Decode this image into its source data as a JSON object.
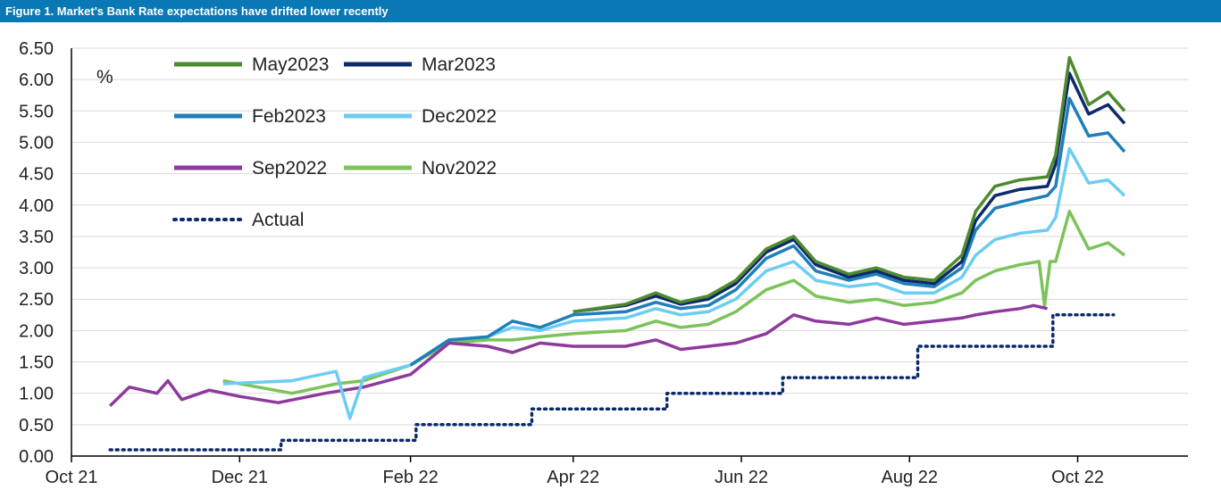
{
  "title": "Figure 1. Market's Bank Rate expectations have drifted lower recently",
  "chart_data": {
    "type": "line",
    "unit_label": "%",
    "ylim": [
      0,
      6.5
    ],
    "y_ticks": [
      "0.00",
      "0.50",
      "1.00",
      "1.50",
      "2.00",
      "2.50",
      "3.00",
      "3.50",
      "4.00",
      "4.50",
      "5.00",
      "5.50",
      "6.00",
      "6.50"
    ],
    "x_range": [
      "2021-10-01",
      "2022-11-10"
    ],
    "x_ticks": [
      {
        "date": "2021-10-01",
        "label": "Oct 21"
      },
      {
        "date": "2021-12-01",
        "label": "Dec 21"
      },
      {
        "date": "2022-02-01",
        "label": "Feb 22"
      },
      {
        "date": "2022-04-01",
        "label": "Apr 22"
      },
      {
        "date": "2022-06-01",
        "label": "Jun 22"
      },
      {
        "date": "2022-08-01",
        "label": "Aug 22"
      },
      {
        "date": "2022-10-01",
        "label": "Oct 22"
      }
    ],
    "grid": "horizontal",
    "legend_placement": "top-left",
    "series": [
      {
        "name": "May2023",
        "color": "#4e8a2e",
        "style": "solid",
        "points": [
          [
            "2022-04-01",
            2.3
          ],
          [
            "2022-04-20",
            2.42
          ],
          [
            "2022-05-01",
            2.6
          ],
          [
            "2022-05-10",
            2.45
          ],
          [
            "2022-05-20",
            2.55
          ],
          [
            "2022-05-30",
            2.8
          ],
          [
            "2022-06-10",
            3.3
          ],
          [
            "2022-06-20",
            3.5
          ],
          [
            "2022-06-28",
            3.1
          ],
          [
            "2022-07-10",
            2.9
          ],
          [
            "2022-07-20",
            3.0
          ],
          [
            "2022-07-30",
            2.85
          ],
          [
            "2022-08-10",
            2.8
          ],
          [
            "2022-08-20",
            3.2
          ],
          [
            "2022-08-25",
            3.9
          ],
          [
            "2022-09-01",
            4.3
          ],
          [
            "2022-09-10",
            4.4
          ],
          [
            "2022-09-20",
            4.45
          ],
          [
            "2022-09-23",
            4.8
          ],
          [
            "2022-09-28",
            6.35
          ],
          [
            "2022-10-05",
            5.6
          ],
          [
            "2022-10-12",
            5.8
          ],
          [
            "2022-10-18",
            5.5
          ]
        ]
      },
      {
        "name": "Mar2023",
        "color": "#0c2a6a",
        "style": "solid",
        "points": [
          [
            "2022-04-01",
            2.3
          ],
          [
            "2022-04-20",
            2.4
          ],
          [
            "2022-05-01",
            2.55
          ],
          [
            "2022-05-10",
            2.42
          ],
          [
            "2022-05-20",
            2.5
          ],
          [
            "2022-05-30",
            2.75
          ],
          [
            "2022-06-10",
            3.25
          ],
          [
            "2022-06-20",
            3.45
          ],
          [
            "2022-06-28",
            3.05
          ],
          [
            "2022-07-10",
            2.85
          ],
          [
            "2022-07-20",
            2.95
          ],
          [
            "2022-07-30",
            2.8
          ],
          [
            "2022-08-10",
            2.75
          ],
          [
            "2022-08-20",
            3.1
          ],
          [
            "2022-08-25",
            3.75
          ],
          [
            "2022-09-01",
            4.15
          ],
          [
            "2022-09-10",
            4.25
          ],
          [
            "2022-09-20",
            4.3
          ],
          [
            "2022-09-23",
            4.65
          ],
          [
            "2022-09-28",
            6.1
          ],
          [
            "2022-10-05",
            5.45
          ],
          [
            "2022-10-12",
            5.6
          ],
          [
            "2022-10-18",
            5.3
          ]
        ]
      },
      {
        "name": "Feb2023",
        "color": "#1f7fb8",
        "style": "solid",
        "points": [
          [
            "2022-02-01",
            1.45
          ],
          [
            "2022-02-15",
            1.85
          ],
          [
            "2022-03-01",
            1.9
          ],
          [
            "2022-03-10",
            2.15
          ],
          [
            "2022-03-20",
            2.05
          ],
          [
            "2022-04-01",
            2.25
          ],
          [
            "2022-04-20",
            2.3
          ],
          [
            "2022-05-01",
            2.45
          ],
          [
            "2022-05-10",
            2.35
          ],
          [
            "2022-05-20",
            2.4
          ],
          [
            "2022-05-30",
            2.65
          ],
          [
            "2022-06-10",
            3.15
          ],
          [
            "2022-06-20",
            3.35
          ],
          [
            "2022-06-28",
            2.95
          ],
          [
            "2022-07-10",
            2.8
          ],
          [
            "2022-07-20",
            2.9
          ],
          [
            "2022-07-30",
            2.75
          ],
          [
            "2022-08-10",
            2.7
          ],
          [
            "2022-08-20",
            3.0
          ],
          [
            "2022-08-25",
            3.6
          ],
          [
            "2022-09-01",
            3.95
          ],
          [
            "2022-09-10",
            4.05
          ],
          [
            "2022-09-20",
            4.15
          ],
          [
            "2022-09-23",
            4.3
          ],
          [
            "2022-09-28",
            5.7
          ],
          [
            "2022-10-05",
            5.1
          ],
          [
            "2022-10-12",
            5.15
          ],
          [
            "2022-10-18",
            4.85
          ]
        ]
      },
      {
        "name": "Dec2022",
        "color": "#6ccdf2",
        "style": "solid",
        "points": [
          [
            "2021-11-25",
            1.15
          ],
          [
            "2021-12-20",
            1.2
          ],
          [
            "2022-01-05",
            1.35
          ],
          [
            "2022-01-10",
            0.6
          ],
          [
            "2022-01-15",
            1.25
          ],
          [
            "2022-02-01",
            1.45
          ],
          [
            "2022-02-15",
            1.85
          ],
          [
            "2022-03-01",
            1.9
          ],
          [
            "2022-03-10",
            2.05
          ],
          [
            "2022-03-20",
            2.0
          ],
          [
            "2022-04-01",
            2.15
          ],
          [
            "2022-04-20",
            2.2
          ],
          [
            "2022-05-01",
            2.35
          ],
          [
            "2022-05-10",
            2.25
          ],
          [
            "2022-05-20",
            2.3
          ],
          [
            "2022-05-30",
            2.5
          ],
          [
            "2022-06-10",
            2.95
          ],
          [
            "2022-06-20",
            3.1
          ],
          [
            "2022-06-28",
            2.8
          ],
          [
            "2022-07-10",
            2.7
          ],
          [
            "2022-07-20",
            2.75
          ],
          [
            "2022-07-30",
            2.6
          ],
          [
            "2022-08-10",
            2.6
          ],
          [
            "2022-08-20",
            2.85
          ],
          [
            "2022-08-25",
            3.2
          ],
          [
            "2022-09-01",
            3.45
          ],
          [
            "2022-09-10",
            3.55
          ],
          [
            "2022-09-20",
            3.6
          ],
          [
            "2022-09-23",
            3.8
          ],
          [
            "2022-09-28",
            4.9
          ],
          [
            "2022-10-05",
            4.35
          ],
          [
            "2022-10-12",
            4.4
          ],
          [
            "2022-10-18",
            4.15
          ]
        ]
      },
      {
        "name": "Sep2022",
        "color": "#8e3a9c",
        "style": "solid",
        "points": [
          [
            "2021-10-15",
            0.8
          ],
          [
            "2021-10-22",
            1.1
          ],
          [
            "2021-11-01",
            1.0
          ],
          [
            "2021-11-05",
            1.2
          ],
          [
            "2021-11-10",
            0.9
          ],
          [
            "2021-11-20",
            1.05
          ],
          [
            "2021-12-01",
            0.95
          ],
          [
            "2021-12-15",
            0.85
          ],
          [
            "2022-01-01",
            1.0
          ],
          [
            "2022-01-15",
            1.1
          ],
          [
            "2022-02-01",
            1.3
          ],
          [
            "2022-02-15",
            1.8
          ],
          [
            "2022-03-01",
            1.75
          ],
          [
            "2022-03-10",
            1.65
          ],
          [
            "2022-03-20",
            1.8
          ],
          [
            "2022-04-01",
            1.75
          ],
          [
            "2022-04-20",
            1.75
          ],
          [
            "2022-05-01",
            1.85
          ],
          [
            "2022-05-10",
            1.7
          ],
          [
            "2022-05-20",
            1.75
          ],
          [
            "2022-05-30",
            1.8
          ],
          [
            "2022-06-10",
            1.95
          ],
          [
            "2022-06-20",
            2.25
          ],
          [
            "2022-06-28",
            2.15
          ],
          [
            "2022-07-10",
            2.1
          ],
          [
            "2022-07-20",
            2.2
          ],
          [
            "2022-07-30",
            2.1
          ],
          [
            "2022-08-10",
            2.15
          ],
          [
            "2022-08-20",
            2.2
          ],
          [
            "2022-08-25",
            2.25
          ],
          [
            "2022-09-01",
            2.3
          ],
          [
            "2022-09-10",
            2.35
          ],
          [
            "2022-09-15",
            2.4
          ],
          [
            "2022-09-20",
            2.35
          ]
        ]
      },
      {
        "name": "Nov2022",
        "color": "#7cc35a",
        "style": "solid",
        "points": [
          [
            "2021-11-25",
            1.2
          ],
          [
            "2021-12-20",
            1.0
          ],
          [
            "2022-01-05",
            1.15
          ],
          [
            "2022-01-15",
            1.2
          ],
          [
            "2022-02-01",
            1.45
          ],
          [
            "2022-02-15",
            1.8
          ],
          [
            "2022-03-01",
            1.85
          ],
          [
            "2022-03-10",
            1.85
          ],
          [
            "2022-03-20",
            1.9
          ],
          [
            "2022-04-01",
            1.95
          ],
          [
            "2022-04-20",
            2.0
          ],
          [
            "2022-05-01",
            2.15
          ],
          [
            "2022-05-10",
            2.05
          ],
          [
            "2022-05-20",
            2.1
          ],
          [
            "2022-05-30",
            2.3
          ],
          [
            "2022-06-10",
            2.65
          ],
          [
            "2022-06-20",
            2.8
          ],
          [
            "2022-06-28",
            2.55
          ],
          [
            "2022-07-10",
            2.45
          ],
          [
            "2022-07-20",
            2.5
          ],
          [
            "2022-07-30",
            2.4
          ],
          [
            "2022-08-10",
            2.45
          ],
          [
            "2022-08-20",
            2.6
          ],
          [
            "2022-08-25",
            2.8
          ],
          [
            "2022-09-01",
            2.95
          ],
          [
            "2022-09-10",
            3.05
          ],
          [
            "2022-09-17",
            3.1
          ],
          [
            "2022-09-19",
            2.4
          ],
          [
            "2022-09-21",
            3.1
          ],
          [
            "2022-09-23",
            3.1
          ],
          [
            "2022-09-28",
            3.9
          ],
          [
            "2022-10-05",
            3.3
          ],
          [
            "2022-10-12",
            3.4
          ],
          [
            "2022-10-18",
            3.2
          ]
        ]
      },
      {
        "name": "Actual",
        "color": "#0c2a6a",
        "style": "dotted",
        "points": [
          [
            "2021-10-15",
            0.1
          ],
          [
            "2021-12-16",
            0.1
          ],
          [
            "2021-12-16",
            0.25
          ],
          [
            "2022-02-03",
            0.25
          ],
          [
            "2022-02-03",
            0.5
          ],
          [
            "2022-03-17",
            0.5
          ],
          [
            "2022-03-17",
            0.75
          ],
          [
            "2022-05-05",
            0.75
          ],
          [
            "2022-05-05",
            1.0
          ],
          [
            "2022-06-16",
            1.0
          ],
          [
            "2022-06-16",
            1.25
          ],
          [
            "2022-08-04",
            1.25
          ],
          [
            "2022-08-04",
            1.75
          ],
          [
            "2022-09-22",
            1.75
          ],
          [
            "2022-09-22",
            2.25
          ],
          [
            "2022-10-14",
            2.25
          ]
        ]
      }
    ]
  }
}
